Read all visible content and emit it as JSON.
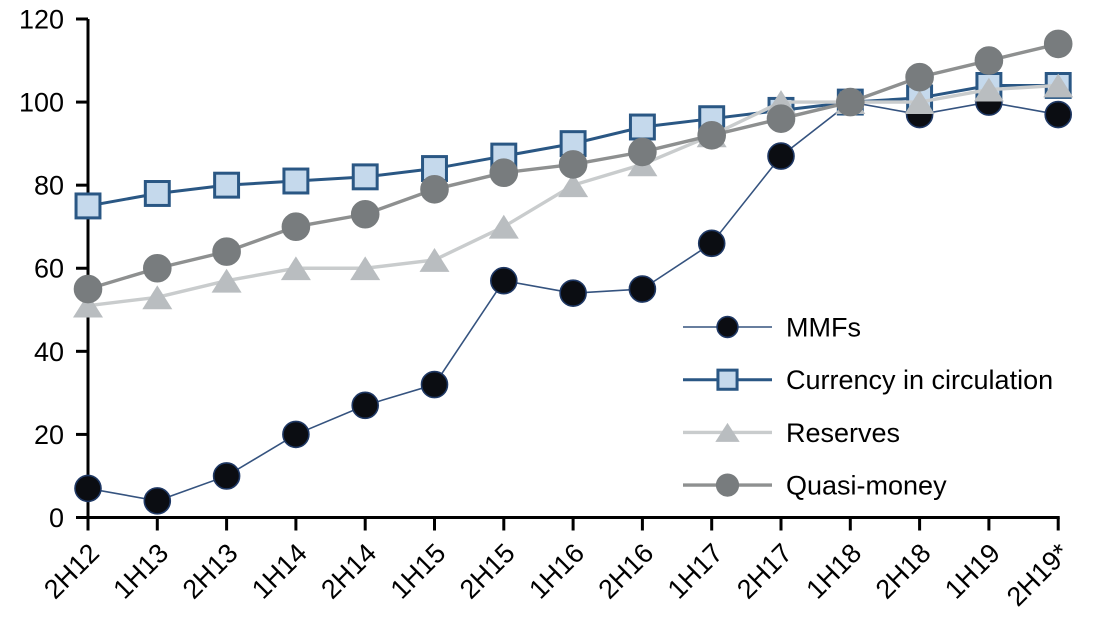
{
  "chart_data": {
    "type": "line",
    "title": "",
    "categories": [
      "2H12",
      "1H13",
      "2H13",
      "1H14",
      "2H14",
      "1H15",
      "2H15",
      "1H16",
      "2H16",
      "1H17",
      "2H17",
      "1H18",
      "2H18",
      "1H19",
      "2H19*"
    ],
    "series": [
      {
        "name": "MMFs",
        "marker": "circle",
        "values": [
          7,
          4,
          10,
          20,
          27,
          32,
          57,
          54,
          55,
          66,
          87,
          100,
          97,
          100,
          97
        ],
        "line_color": "#35537f",
        "line_width": 1.6,
        "marker_fill": "#0b0d12",
        "marker_stroke": "#1f3864",
        "marker_size": 26
      },
      {
        "name": "Currency in circulation",
        "marker": "square",
        "values": [
          75,
          78,
          80,
          81,
          82,
          84,
          87,
          90,
          94,
          96,
          98,
          100,
          101,
          104,
          104
        ],
        "line_color": "#2a5784",
        "line_width": 3,
        "marker_fill": "#c5d9ec",
        "marker_stroke": "#2a5784",
        "marker_size": 26
      },
      {
        "name": "Reserves",
        "marker": "triangle",
        "values": [
          51,
          53,
          57,
          60,
          60,
          62,
          70,
          80,
          85,
          92,
          100,
          100,
          100,
          103,
          104
        ],
        "line_color": "#c9cccd",
        "line_width": 3.4,
        "marker_fill": "#b9bdc0",
        "marker_stroke": "#b9bdc0",
        "marker_size": 28
      },
      {
        "name": "Quasi-money",
        "marker": "circle",
        "values": [
          55,
          60,
          64,
          70,
          73,
          79,
          83,
          85,
          88,
          92,
          96,
          100,
          106,
          110,
          114
        ],
        "line_color": "#8e9090",
        "line_width": 3.4,
        "marker_fill": "#787c7e",
        "marker_stroke": "#787c7e",
        "marker_size": 27
      }
    ],
    "y_axis": {
      "min": 0,
      "max": 120,
      "step": 20,
      "tick_labels": [
        "0",
        "20",
        "40",
        "60",
        "80",
        "100",
        "120"
      ]
    },
    "x_axis": {
      "label_rotation": -45
    },
    "legend": {
      "position": "inside-right",
      "items": [
        "MMFs",
        "Currency in circulation",
        "Reserves",
        "Quasi-money"
      ]
    },
    "grid": false,
    "axis_color": "#000000",
    "background": "#ffffff"
  }
}
